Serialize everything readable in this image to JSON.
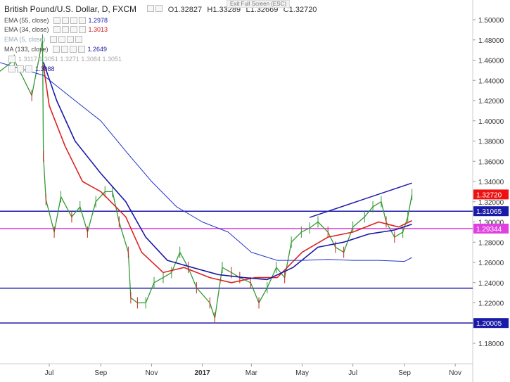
{
  "header": {
    "symbol": "British Pound/U.S. Dollar, D, FXCM",
    "open": "O1.32827",
    "high": "H1.33289",
    "low": "L1.32669",
    "close": "C1.32720",
    "exit_fullscreen": "Exit Full Screen (ESC)"
  },
  "indicators": [
    {
      "label": "EMA (55, close)",
      "value": "1.2978",
      "color": "#1a1aa8"
    },
    {
      "label": "EMA (34, close)",
      "value": "1.3013",
      "color": "#cc1111"
    },
    {
      "label": "EMA (5, close)",
      "value": "",
      "color": "#8899aa"
    },
    {
      "label": "MA (133, close)",
      "value": "1.2649",
      "color": "#1a1aa8"
    },
    {
      "label": "",
      "value": "1.3117  1.3051  1.3271  1.3084  1.3051",
      "color": "#aaaaaa"
    },
    {
      "label": "",
      "value": "1.3088",
      "color": "#1a1aa8"
    }
  ],
  "chart_data": {
    "type": "line",
    "title": "British Pound/U.S. Dollar, D, FXCM",
    "x_tick_labels": [
      "Jul",
      "Sep",
      "Nov",
      "2017",
      "Mar",
      "May",
      "Jul",
      "Sep",
      "Nov"
    ],
    "y_tick_labels": [
      "1.18000",
      "1.20000",
      "1.22000",
      "1.24000",
      "1.26000",
      "1.28000",
      "1.30000",
      "1.32000",
      "1.34000",
      "1.36000",
      "1.38000",
      "1.40000",
      "1.42000",
      "1.44000",
      "1.46000",
      "1.48000",
      "1.50000"
    ],
    "ylim": [
      1.175,
      1.51
    ],
    "horizontal_lines": [
      {
        "value": 1.31065,
        "label": "1.31065",
        "color": "#1a1aa8"
      },
      {
        "value": 1.29344,
        "label": "1.29344",
        "color": "#e040e0"
      },
      {
        "value": 1.2345,
        "label": "",
        "color": "#1a1aa8"
      },
      {
        "value": 1.20005,
        "label": "1.20005",
        "color": "#1a1aa8"
      }
    ],
    "price_tag": {
      "value": 1.3272,
      "label": "1.32720",
      "color": "#ee1111"
    },
    "trendline": {
      "from": {
        "x": "2017-05-10",
        "y": 1.3045
      },
      "to": {
        "x": "2017-09-10",
        "y": 1.3385
      },
      "color": "#1a1aa8"
    },
    "series": [
      {
        "name": "Price",
        "color": "#339933",
        "points": [
          [
            "2016-05-01",
            1.448
          ],
          [
            "2016-05-20",
            1.46
          ],
          [
            "2016-06-10",
            1.425
          ],
          [
            "2016-06-23",
            1.48
          ],
          [
            "2016-06-24",
            1.365
          ],
          [
            "2016-06-27",
            1.322
          ],
          [
            "2016-07-07",
            1.29
          ],
          [
            "2016-07-15",
            1.325
          ],
          [
            "2016-07-28",
            1.305
          ],
          [
            "2016-08-07",
            1.315
          ],
          [
            "2016-08-16",
            1.29
          ],
          [
            "2016-08-26",
            1.32
          ],
          [
            "2016-09-06",
            1.33
          ],
          [
            "2016-09-15",
            1.33
          ],
          [
            "2016-09-23",
            1.3
          ],
          [
            "2016-10-04",
            1.27
          ],
          [
            "2016-10-07",
            1.225
          ],
          [
            "2016-10-15",
            1.22
          ],
          [
            "2016-10-25",
            1.22
          ],
          [
            "2016-11-04",
            1.24
          ],
          [
            "2016-11-15",
            1.245
          ],
          [
            "2016-11-25",
            1.25
          ],
          [
            "2016-12-05",
            1.27
          ],
          [
            "2016-12-15",
            1.255
          ],
          [
            "2016-12-25",
            1.235
          ],
          [
            "2017-01-10",
            1.22
          ],
          [
            "2017-01-16",
            1.205
          ],
          [
            "2017-01-25",
            1.255
          ],
          [
            "2017-02-05",
            1.25
          ],
          [
            "2017-02-15",
            1.245
          ],
          [
            "2017-02-28",
            1.24
          ],
          [
            "2017-03-10",
            1.22
          ],
          [
            "2017-03-20",
            1.235
          ],
          [
            "2017-03-31",
            1.255
          ],
          [
            "2017-04-10",
            1.245
          ],
          [
            "2017-04-18",
            1.28
          ],
          [
            "2017-04-30",
            1.29
          ],
          [
            "2017-05-10",
            1.294
          ],
          [
            "2017-05-20",
            1.3
          ],
          [
            "2017-06-01",
            1.29
          ],
          [
            "2017-06-10",
            1.275
          ],
          [
            "2017-06-20",
            1.27
          ],
          [
            "2017-07-01",
            1.295
          ],
          [
            "2017-07-15",
            1.305
          ],
          [
            "2017-07-25",
            1.315
          ],
          [
            "2017-08-04",
            1.32
          ],
          [
            "2017-08-10",
            1.3
          ],
          [
            "2017-08-20",
            1.285
          ],
          [
            "2017-08-30",
            1.29
          ],
          [
            "2017-09-05",
            1.305
          ],
          [
            "2017-09-10",
            1.327
          ]
        ]
      },
      {
        "name": "EMA (34, close)",
        "color": "#dd2222",
        "points": [
          [
            "2016-06-24",
            1.455
          ],
          [
            "2016-07-01",
            1.415
          ],
          [
            "2016-07-20",
            1.375
          ],
          [
            "2016-08-10",
            1.34
          ],
          [
            "2016-09-01",
            1.33
          ],
          [
            "2016-10-01",
            1.305
          ],
          [
            "2016-10-20",
            1.27
          ],
          [
            "2016-11-15",
            1.25
          ],
          [
            "2016-12-10",
            1.255
          ],
          [
            "2017-01-10",
            1.245
          ],
          [
            "2017-02-05",
            1.24
          ],
          [
            "2017-03-05",
            1.245
          ],
          [
            "2017-04-01",
            1.245
          ],
          [
            "2017-05-01",
            1.27
          ],
          [
            "2017-06-01",
            1.285
          ],
          [
            "2017-07-01",
            1.29
          ],
          [
            "2017-08-01",
            1.3
          ],
          [
            "2017-08-25",
            1.295
          ],
          [
            "2017-09-10",
            1.3013
          ]
        ]
      },
      {
        "name": "EMA (55, close)",
        "color": "#1a1aa8",
        "points": [
          [
            "2016-06-24",
            1.458
          ],
          [
            "2016-07-10",
            1.42
          ],
          [
            "2016-08-01",
            1.38
          ],
          [
            "2016-09-01",
            1.348
          ],
          [
            "2016-10-01",
            1.32
          ],
          [
            "2016-10-25",
            1.285
          ],
          [
            "2016-11-20",
            1.262
          ],
          [
            "2016-12-20",
            1.255
          ],
          [
            "2017-01-20",
            1.248
          ],
          [
            "2017-02-20",
            1.245
          ],
          [
            "2017-03-20",
            1.243
          ],
          [
            "2017-04-20",
            1.255
          ],
          [
            "2017-05-20",
            1.275
          ],
          [
            "2017-06-20",
            1.28
          ],
          [
            "2017-07-20",
            1.288
          ],
          [
            "2017-08-20",
            1.292
          ],
          [
            "2017-09-10",
            1.2978
          ]
        ]
      },
      {
        "name": "MA (133, close)",
        "color": "#2233cc",
        "points": [
          [
            "2016-05-01",
            1.458
          ],
          [
            "2016-06-24",
            1.445
          ],
          [
            "2016-08-01",
            1.42
          ],
          [
            "2016-09-01",
            1.4
          ],
          [
            "2016-10-01",
            1.37
          ],
          [
            "2016-11-01",
            1.34
          ],
          [
            "2016-12-01",
            1.315
          ],
          [
            "2017-01-01",
            1.3
          ],
          [
            "2017-02-01",
            1.29
          ],
          [
            "2017-03-01",
            1.27
          ],
          [
            "2017-04-01",
            1.262
          ],
          [
            "2017-05-01",
            1.262
          ],
          [
            "2017-06-01",
            1.263
          ],
          [
            "2017-07-01",
            1.262
          ],
          [
            "2017-08-01",
            1.262
          ],
          [
            "2017-09-01",
            1.261
          ],
          [
            "2017-09-10",
            1.2649
          ]
        ]
      }
    ]
  }
}
